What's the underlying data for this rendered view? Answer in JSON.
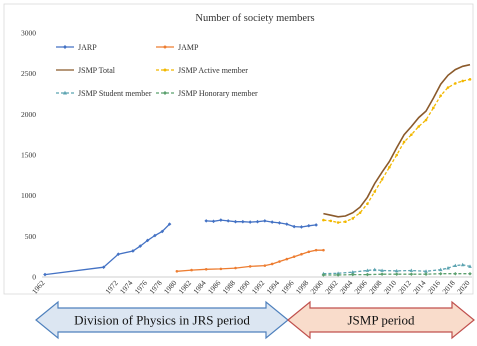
{
  "chart_data": {
    "type": "line",
    "title": "Number of society members",
    "xlabel": "",
    "ylabel": "",
    "ylim": [
      0,
      3000
    ],
    "xlim": [
      1962,
      2020
    ],
    "y_ticks": [
      0,
      500,
      1000,
      1500,
      2000,
      2500,
      3000
    ],
    "x_ticks": [
      1962,
      1972,
      1974,
      1976,
      1978,
      1980,
      1982,
      1984,
      1986,
      1988,
      1990,
      1992,
      1994,
      1996,
      1998,
      2000,
      2002,
      2004,
      2006,
      2008,
      2010,
      2012,
      2014,
      2016,
      2018,
      2020
    ],
    "grid": false,
    "legend_position": "top-left",
    "series": [
      {
        "name": "JARP",
        "color": "#4472C4",
        "marker": "diamond",
        "dash": "solid",
        "points": [
          [
            1962,
            30
          ],
          [
            1970,
            120
          ],
          [
            1972,
            280
          ],
          [
            1974,
            320
          ],
          [
            1975,
            380
          ],
          [
            1976,
            450
          ],
          [
            1977,
            510
          ],
          [
            1978,
            560
          ],
          [
            1979,
            650
          ],
          null,
          [
            1984,
            690
          ],
          [
            1985,
            685
          ],
          [
            1986,
            700
          ],
          [
            1987,
            690
          ],
          [
            1988,
            680
          ],
          [
            1989,
            680
          ],
          [
            1990,
            675
          ],
          [
            1991,
            680
          ],
          [
            1992,
            690
          ],
          [
            1993,
            675
          ],
          [
            1994,
            665
          ],
          [
            1995,
            650
          ],
          [
            1996,
            620
          ],
          [
            1997,
            615
          ],
          [
            1998,
            630
          ],
          [
            1999,
            640
          ]
        ]
      },
      {
        "name": "JAMP",
        "color": "#ED7D31",
        "marker": "circle",
        "dash": "solid",
        "points": [
          [
            1980,
            70
          ],
          [
            1982,
            85
          ],
          [
            1984,
            95
          ],
          [
            1986,
            100
          ],
          [
            1988,
            110
          ],
          [
            1990,
            130
          ],
          [
            1992,
            140
          ],
          [
            1993,
            160
          ],
          [
            1994,
            190
          ],
          [
            1995,
            220
          ],
          [
            1996,
            250
          ],
          [
            1997,
            280
          ],
          [
            1998,
            310
          ],
          [
            1999,
            330
          ],
          [
            2000,
            330
          ]
        ]
      },
      {
        "name": "JSMP Total",
        "color": "#8B5A2B",
        "marker": "none",
        "dash": "solid",
        "points": [
          [
            2000,
            780
          ],
          [
            2001,
            760
          ],
          [
            2002,
            740
          ],
          [
            2003,
            750
          ],
          [
            2004,
            790
          ],
          [
            2005,
            860
          ],
          [
            2006,
            980
          ],
          [
            2007,
            1150
          ],
          [
            2008,
            1290
          ],
          [
            2009,
            1420
          ],
          [
            2010,
            1590
          ],
          [
            2011,
            1750
          ],
          [
            2012,
            1850
          ],
          [
            2013,
            1960
          ],
          [
            2014,
            2040
          ],
          [
            2015,
            2200
          ],
          [
            2016,
            2370
          ],
          [
            2017,
            2480
          ],
          [
            2018,
            2550
          ],
          [
            2019,
            2590
          ],
          [
            2020,
            2610
          ]
        ]
      },
      {
        "name": "JSMP Active member",
        "color": "#F2B800",
        "marker": "circle",
        "dash": "dash",
        "points": [
          [
            2000,
            700
          ],
          [
            2001,
            690
          ],
          [
            2002,
            670
          ],
          [
            2003,
            680
          ],
          [
            2004,
            720
          ],
          [
            2005,
            790
          ],
          [
            2006,
            900
          ],
          [
            2007,
            1050
          ],
          [
            2008,
            1200
          ],
          [
            2009,
            1350
          ],
          [
            2010,
            1500
          ],
          [
            2011,
            1660
          ],
          [
            2012,
            1750
          ],
          [
            2013,
            1850
          ],
          [
            2014,
            1930
          ],
          [
            2015,
            2080
          ],
          [
            2016,
            2230
          ],
          [
            2017,
            2330
          ],
          [
            2018,
            2380
          ],
          [
            2019,
            2410
          ],
          [
            2020,
            2430
          ]
        ]
      },
      {
        "name": "JSMP Student member",
        "color": "#5BA3B0",
        "marker": "triangle",
        "dash": "dash",
        "points": [
          [
            2000,
            40
          ],
          [
            2002,
            45
          ],
          [
            2004,
            60
          ],
          [
            2006,
            80
          ],
          [
            2007,
            90
          ],
          [
            2008,
            80
          ],
          [
            2010,
            75
          ],
          [
            2012,
            80
          ],
          [
            2014,
            70
          ],
          [
            2016,
            90
          ],
          [
            2017,
            110
          ],
          [
            2018,
            140
          ],
          [
            2019,
            150
          ],
          [
            2020,
            130
          ]
        ]
      },
      {
        "name": "JSMP Honorary member",
        "color": "#5BA06E",
        "marker": "diamond",
        "dash": "dash",
        "points": [
          [
            2000,
            25
          ],
          [
            2002,
            25
          ],
          [
            2004,
            30
          ],
          [
            2006,
            30
          ],
          [
            2008,
            35
          ],
          [
            2010,
            35
          ],
          [
            2012,
            35
          ],
          [
            2014,
            35
          ],
          [
            2016,
            40
          ],
          [
            2018,
            40
          ],
          [
            2020,
            40
          ]
        ]
      }
    ]
  },
  "periods": [
    {
      "label": "Division of Physics in JRS period",
      "color": "#DCE6F2",
      "border": "#4F81BD"
    },
    {
      "label": "JSMP period",
      "color": "#F9DCCB",
      "border": "#C0504D"
    }
  ]
}
